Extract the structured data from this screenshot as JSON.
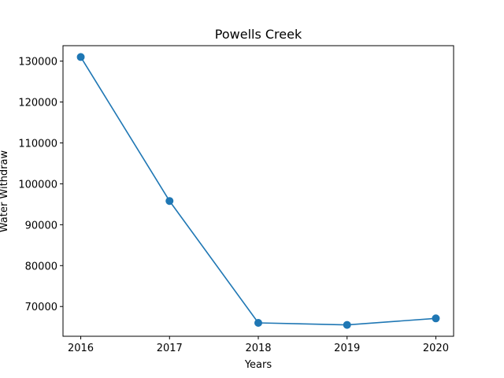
{
  "chart_data": {
    "type": "line",
    "title": "Powells Creek",
    "xlabel": "Years",
    "ylabel": "Water Withdraw",
    "x": [
      2016,
      2017,
      2018,
      2019,
      2020
    ],
    "series": [
      {
        "values": [
          131000,
          95800,
          66000,
          65500,
          67100
        ],
        "color": "#1f77b4",
        "marker": "circle"
      }
    ],
    "xticks": [
      "2016",
      "2017",
      "2018",
      "2019",
      "2020"
    ],
    "yticks": [
      70000,
      80000,
      90000,
      100000,
      110000,
      120000,
      130000
    ],
    "ytick_labels": [
      "70000",
      "80000",
      "90000",
      "100000",
      "110000",
      "120000",
      "130000"
    ],
    "ylim": [
      62725,
      133775
    ],
    "xlim": [
      2015.8,
      2020.2
    ],
    "grid": false
  }
}
